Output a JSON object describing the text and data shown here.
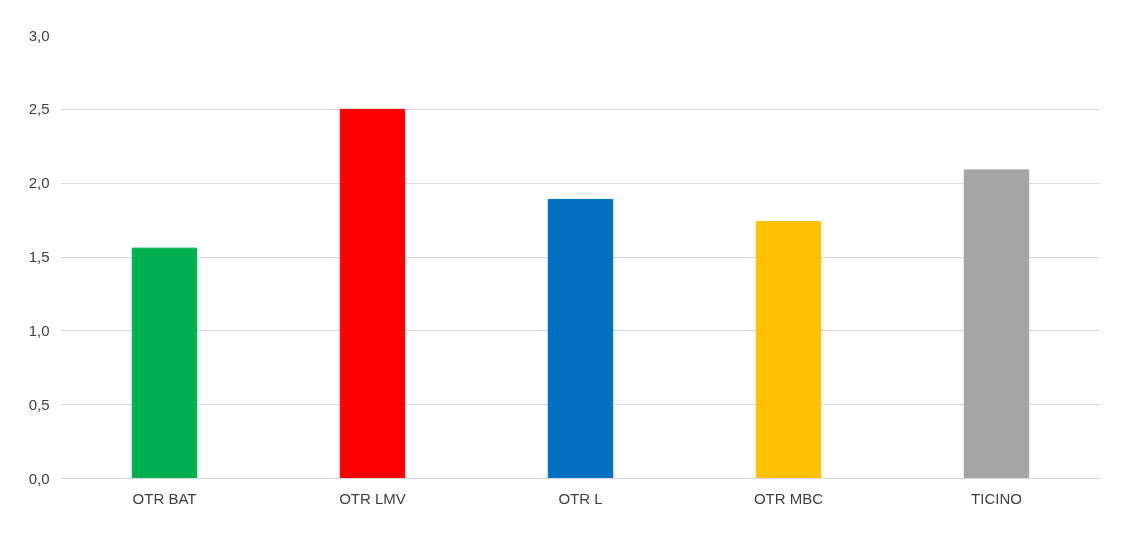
{
  "chart_data": {
    "type": "bar",
    "categories": [
      "OTR BAT",
      "OTR LMV",
      "OTR L",
      "OTR MBC",
      "TICINO"
    ],
    "values": [
      1.56,
      2.5,
      1.89,
      1.74,
      2.09
    ],
    "colors": [
      "#00b050",
      "#ff0000",
      "#0070c0",
      "#ffc000",
      "#a5a5a5"
    ],
    "ylim": [
      0,
      3
    ],
    "yticks": [
      {
        "value": 0,
        "label": "0,0"
      },
      {
        "value": 0.5,
        "label": "0,5"
      },
      {
        "value": 1,
        "label": "1,0"
      },
      {
        "value": 1.5,
        "label": "1,5"
      },
      {
        "value": 2,
        "label": "2,0"
      },
      {
        "value": 2.5,
        "label": "2,5"
      },
      {
        "value": 3,
        "label": "3,0"
      }
    ],
    "grid": "y"
  }
}
